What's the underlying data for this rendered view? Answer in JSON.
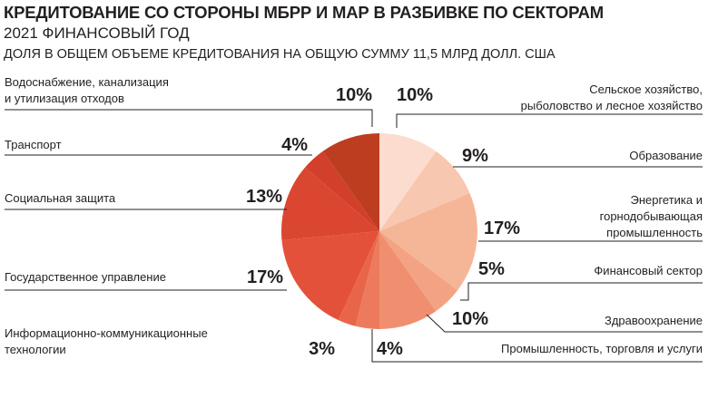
{
  "title": "КРЕДИТОВАНИЕ СО СТОРОНЫ МБРР И МАР В РАЗБИВКЕ ПО СЕКТОРАМ",
  "subtitle": "2021 ФИНАНСОВЫЙ ГОД",
  "note": "ДОЛЯ В ОБЩЕМ ОБЪЕМЕ КРЕДИТОВАНИЯ НА ОБЩУЮ СУММУ 11,5 МЛРД ДОЛЛ. США",
  "chart_data": {
    "type": "pie",
    "title": "КРЕДИТОВАНИЕ СО СТОРОНЫ МБРР И МАР В РАЗБИВКЕ ПО СЕКТОРАМ",
    "unit": "%",
    "categories": [
      "Сельское хозяйство, рыболовство и лесное хозяйство",
      "Образование",
      "Энергетика и горнодобывающая промышленность",
      "Финансовый сектор",
      "Здравоохранение",
      "Промышленность, торговля и услуги",
      "Информационно-коммуникационные технологии",
      "Государственное управление",
      "Социальная защита",
      "Транспорт",
      "Водоснабжение, канализация и утилизация отходов"
    ],
    "label_lines": [
      [
        "Сельское хозяйство,",
        "рыболовство и лесное хозяйство"
      ],
      [
        "Образование"
      ],
      [
        "Энергетика и",
        "горнодобывающая",
        "промышленность"
      ],
      [
        "Финансовый сектор"
      ],
      [
        "Здравоохранение"
      ],
      [
        "Промышленность, торговля и услуги"
      ],
      [
        "Информационно-коммуникационные",
        "технологии"
      ],
      [
        "Государственное управление"
      ],
      [
        "Социальная защита"
      ],
      [
        "Транспорт"
      ],
      [
        "Водоснабжение, канализация",
        "и утилизация отходов"
      ]
    ],
    "values": [
      10,
      9,
      17,
      5,
      10,
      4,
      3,
      17,
      13,
      4,
      10
    ],
    "value_labels": [
      "10%",
      "9%",
      "17%",
      "5%",
      "10%",
      "4%",
      "3%",
      "17%",
      "13%",
      "4%",
      "10%"
    ],
    "colors": [
      "#fbdcce",
      "#f8c7b0",
      "#f5b698",
      "#f3a383",
      "#f08f6f",
      "#ed7a5c",
      "#e9654a",
      "#e4513a",
      "#db4631",
      "#d23f2a",
      "#bd3d20"
    ],
    "start_angle_deg": 0,
    "direction": "clockwise"
  }
}
